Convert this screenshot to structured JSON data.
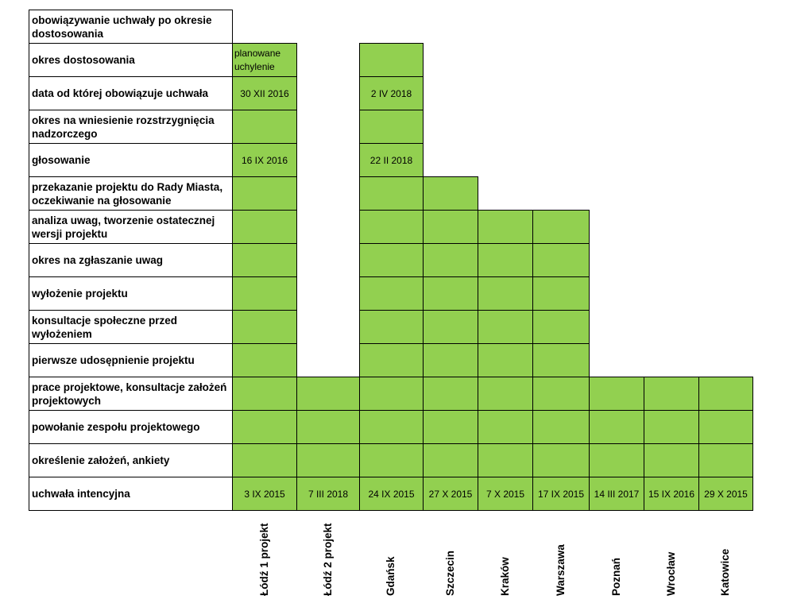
{
  "chart_data": {
    "type": "table",
    "title": "",
    "stages": [
      "obowiązywanie uchwały po okresie dostosowania",
      "okres dostosowania",
      "data od której obowiązuje uchwała",
      "okres na wniesienie rozstrzygnięcia nadzorczego",
      "głosowanie",
      "przekazanie projektu do Rady Miasta, oczekiwanie na głosowanie",
      "analiza uwag, tworzenie ostatecznej wersji projektu",
      "okres na zgłaszanie uwag",
      "wyłożenie projektu",
      "konsultacje społeczne przed wyłożeniem",
      "pierwsze udosępnienie projektu",
      "prace projektowe, konsultacje założeń projektowych",
      "powołanie zespołu projektowego",
      "określenie założeń, ankiety",
      "uchwała intencyjna"
    ],
    "cities": [
      {
        "name": "Łódź 1 projekt",
        "stages_reached": 14,
        "notes": {
          "uchwała intencyjna": "3 IX 2015",
          "głosowanie": "16 IX 2016",
          "data od której obowiązuje uchwała": "30 XII 2016",
          "okres dostosowania": "planowane uchylenie"
        }
      },
      {
        "name": "Łódź 2 projekt",
        "stages_reached": 4,
        "notes": {
          "uchwała intencyjna": "7 III 2018"
        }
      },
      {
        "name": "Gdańsk",
        "stages_reached": 14,
        "notes": {
          "uchwała intencyjna": "24 IX  2015",
          "głosowanie": "22 II 2018",
          "data od której obowiązuje uchwała": "2 IV 2018"
        }
      },
      {
        "name": "Szczecin",
        "stages_reached": 10,
        "notes": {
          "uchwała intencyjna": "27 X 2015"
        }
      },
      {
        "name": "Kraków",
        "stages_reached": 9,
        "notes": {
          "uchwała intencyjna": "7 X 2015"
        }
      },
      {
        "name": "Warszawa",
        "stages_reached": 9,
        "notes": {
          "uchwała intencyjna": "17 IX 2015"
        }
      },
      {
        "name": "Poznań",
        "stages_reached": 4,
        "notes": {
          "uchwała intencyjna": "14 III 2017"
        }
      },
      {
        "name": "Wrocław",
        "stages_reached": 4,
        "notes": {
          "uchwała intencyjna": "15 IX 2016"
        }
      },
      {
        "name": "Katowice",
        "stages_reached": 4,
        "notes": {
          "uchwała intencyjna": "29 X 2015"
        }
      }
    ],
    "fill_color": "#92d050",
    "grid": true
  }
}
